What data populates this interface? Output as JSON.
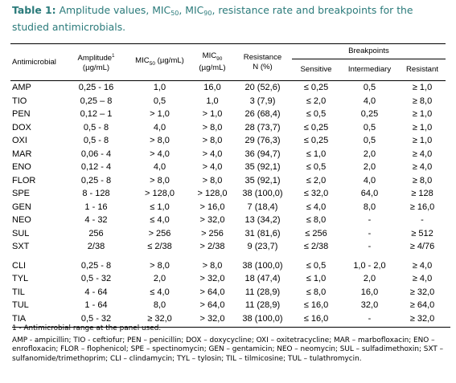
{
  "caption": {
    "label": "Table 1:",
    "text_a": " Amplitude values, MIC",
    "sub50": "50",
    "text_b": ", MIC",
    "sub90": "90",
    "text_c": ", resistance rate and breakpoints for the studied antimicrobials."
  },
  "header": {
    "antimicrobial": "Antimicrobial",
    "amplitude": "Amplitude",
    "amplitude_sup": "1",
    "amplitude_unit": "(µg/mL)",
    "mic50_pre": "MIC",
    "mic50_sub": "50",
    "mic50_post": " (µg/mL)",
    "mic90_pre": "MIC",
    "mic90_sub": "90",
    "mic90_unit": "(µg/mL)",
    "resistance": "Resistance",
    "resistance_unit": "N (%)",
    "breakpoints": "Breakpoints",
    "sensitive": "Sensitive",
    "intermediary": "Intermediary",
    "resistant": "Resistant"
  },
  "rows": [
    [
      "AMP",
      "0,25 - 16",
      "1,0",
      "16,0",
      "20 (52,6)",
      "≤ 0,25",
      "0,5",
      "≥ 1,0"
    ],
    [
      "TIO",
      "0,25 – 8",
      "0,5",
      "1,0",
      "3 (7,9)",
      "≤ 2,0",
      "4,0",
      "≥ 8,0"
    ],
    [
      "PEN",
      "0,12 – 1",
      "> 1,0",
      "> 1,0",
      "26 (68,4)",
      "≤ 0,5",
      "0,25",
      "≥ 1,0"
    ],
    [
      "DOX",
      "0,5 - 8",
      "4,0",
      "> 8,0",
      "28 (73,7)",
      "≤ 0,25",
      "0,5",
      "≥ 1,0"
    ],
    [
      "OXI",
      "0,5 - 8",
      "> 8,0",
      "> 8,0",
      "29 (76,3)",
      "≤ 0,25",
      "0,5",
      "≥ 1,0"
    ],
    [
      "MAR",
      "0,06 - 4",
      "> 4,0",
      "> 4,0",
      "36 (94,7)",
      "≤ 1,0",
      "2,0",
      "≥ 4,0"
    ],
    [
      "ENO",
      "0,12 - 4",
      "4,0",
      "> 4,0",
      "35 (92,1)",
      "≤ 0,5",
      "2,0",
      "≥ 4,0"
    ],
    [
      "FLOR",
      "0,25 - 8",
      "> 8,0",
      "> 8,0",
      "35 (92,1)",
      "≤ 2,0",
      "4,0",
      "≥ 8,0"
    ],
    [
      "SPE",
      "8 - 128",
      "> 128,0",
      "> 128,0",
      "38 (100,0)",
      "≤ 32,0",
      "64,0",
      "≥ 128"
    ],
    [
      "GEN",
      "1 - 16",
      "≤ 1,0",
      "> 16,0",
      "7 (18,4)",
      "≤ 4,0",
      "8,0",
      "≥ 16,0"
    ],
    [
      "NEO",
      "4 - 32",
      "≤ 4,0",
      "> 32,0",
      "13 (34,2)",
      "≤ 8,0",
      "-",
      "-"
    ],
    [
      "SUL",
      "256",
      "> 256",
      "> 256",
      "31 (81,6)",
      "≤ 256",
      "-",
      "≥ 512"
    ],
    [
      "SXT",
      "2/38",
      "≤ 2/38",
      "> 2/38",
      "9 (23,7)",
      "≤ 2/38",
      "-",
      "≥ 4/76"
    ],
    [
      "CLI",
      "0,25 - 8",
      "> 8,0",
      "> 8,0",
      "38 (100,0)",
      "≤ 0,5",
      "1,0 - 2,0",
      "≥ 4,0"
    ],
    [
      "TYL",
      "0,5 - 32",
      "2,0",
      "> 32,0",
      "18 (47,4)",
      "≤ 1,0",
      "2,0",
      "≥ 4,0"
    ],
    [
      "TIL",
      "4 - 64",
      "≤ 4,0",
      "> 64,0",
      "11 (28,9)",
      "≤ 8,0",
      "16,0",
      "≥ 32,0"
    ],
    [
      "TUL",
      "1 - 64",
      "8,0",
      "> 64,0",
      "11 (28,9)",
      "≤ 16,0",
      "32,0",
      "≥ 64,0"
    ],
    [
      "TIA",
      "0,5 - 32",
      "≥ 32,0",
      "> 32,0",
      "38 (100,0)",
      "≤ 16,0",
      "-",
      "≥ 32,0"
    ]
  ],
  "footnote": {
    "first": "1 - Antimicrobial range at the panel used.",
    "body": "AMP - ampicillin; TIO - ceftiofur; PEN – penicillin; DOX – doxycycline; OXI – oxitetracycline; MAR – marbofloxacin; ENO – enrofloxacin; FLOR – flophenicol; SPE – spectinomycin; GEN – gentamicin; NEO – neomycin; SUL – sulfadimethoxin; SXT – sulfanomide/trimethoprim; CLI – clindamycin; TYL – tylosin; TIL – tilmicosine; TUL – tulathromycin."
  }
}
